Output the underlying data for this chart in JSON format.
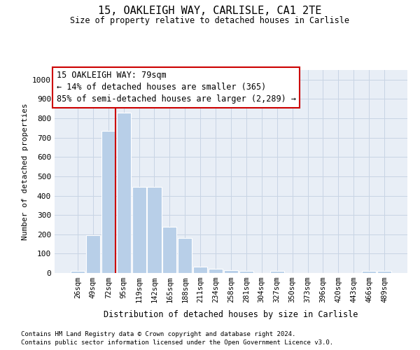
{
  "title_line1": "15, OAKLEIGH WAY, CARLISLE, CA1 2TE",
  "title_line2": "Size of property relative to detached houses in Carlisle",
  "xlabel": "Distribution of detached houses by size in Carlisle",
  "ylabel": "Number of detached properties",
  "bar_labels": [
    "26sqm",
    "49sqm",
    "72sqm",
    "95sqm",
    "119sqm",
    "142sqm",
    "165sqm",
    "188sqm",
    "211sqm",
    "234sqm",
    "258sqm",
    "281sqm",
    "304sqm",
    "327sqm",
    "350sqm",
    "373sqm",
    "396sqm",
    "420sqm",
    "443sqm",
    "466sqm",
    "489sqm"
  ],
  "bar_values": [
    10,
    195,
    735,
    830,
    445,
    445,
    240,
    180,
    33,
    22,
    15,
    10,
    0,
    10,
    0,
    0,
    0,
    0,
    0,
    10,
    10
  ],
  "bar_color": "#b8cfe8",
  "grid_color": "#c8d4e4",
  "background_color": "#e8eef6",
  "vline_color": "#cc0000",
  "vline_x": 2.45,
  "annotation_text": "15 OAKLEIGH WAY: 79sqm\n← 14% of detached houses are smaller (365)\n85% of semi-detached houses are larger (2,289) →",
  "annotation_box_facecolor": "#ffffff",
  "annotation_box_edgecolor": "#cc0000",
  "ylim_max": 1050,
  "yticks": [
    0,
    100,
    200,
    300,
    400,
    500,
    600,
    700,
    800,
    900,
    1000
  ],
  "footnote1": "Contains HM Land Registry data © Crown copyright and database right 2024.",
  "footnote2": "Contains public sector information licensed under the Open Government Licence v3.0."
}
